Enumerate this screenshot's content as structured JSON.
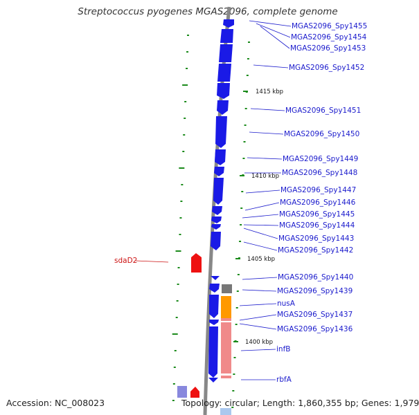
{
  "title": "Streptococcus pyogenes MGAS2096, complete genome",
  "footer": {
    "accession": "Accession: NC_008023",
    "summary": "Topology: circular; Length: 1,860,355 bp; Genes: 1,979"
  },
  "colors": {
    "forward_cds": "#1a1ae6",
    "reverse_cds": "#ee1111",
    "rna_orange": "#ff9900",
    "rna_pink": "#f08a8a",
    "backbone": "#888888",
    "tick": "#1a8a1a",
    "label_blue": "#1a1acc",
    "label_red": "#cc1111"
  },
  "kbp_markers": [
    "1415 kbp",
    "1410 kbp",
    "1405 kbp",
    "1400 kbp"
  ],
  "gene_labels_right": [
    "MGAS2096_Spy1455",
    "MGAS2096_Spy1454",
    "MGAS2096_Spy1453",
    "MGAS2096_Spy1452",
    "MGAS2096_Spy1451",
    "MGAS2096_Spy1450",
    "MGAS2096_Spy1449",
    "MGAS2096_Spy1448",
    "MGAS2096_Spy1447",
    "MGAS2096_Spy1446",
    "MGAS2096_Spy1445",
    "MGAS2096_Spy1444",
    "MGAS2096_Spy1443",
    "MGAS2096_Spy1442",
    "MGAS2096_Spy1440",
    "MGAS2096_Spy1439",
    "nusA",
    "MGAS2096_Spy1437",
    "MGAS2096_Spy1436",
    "infB",
    "rbfA"
  ],
  "gene_labels_left": [
    "sdaD2"
  ]
}
